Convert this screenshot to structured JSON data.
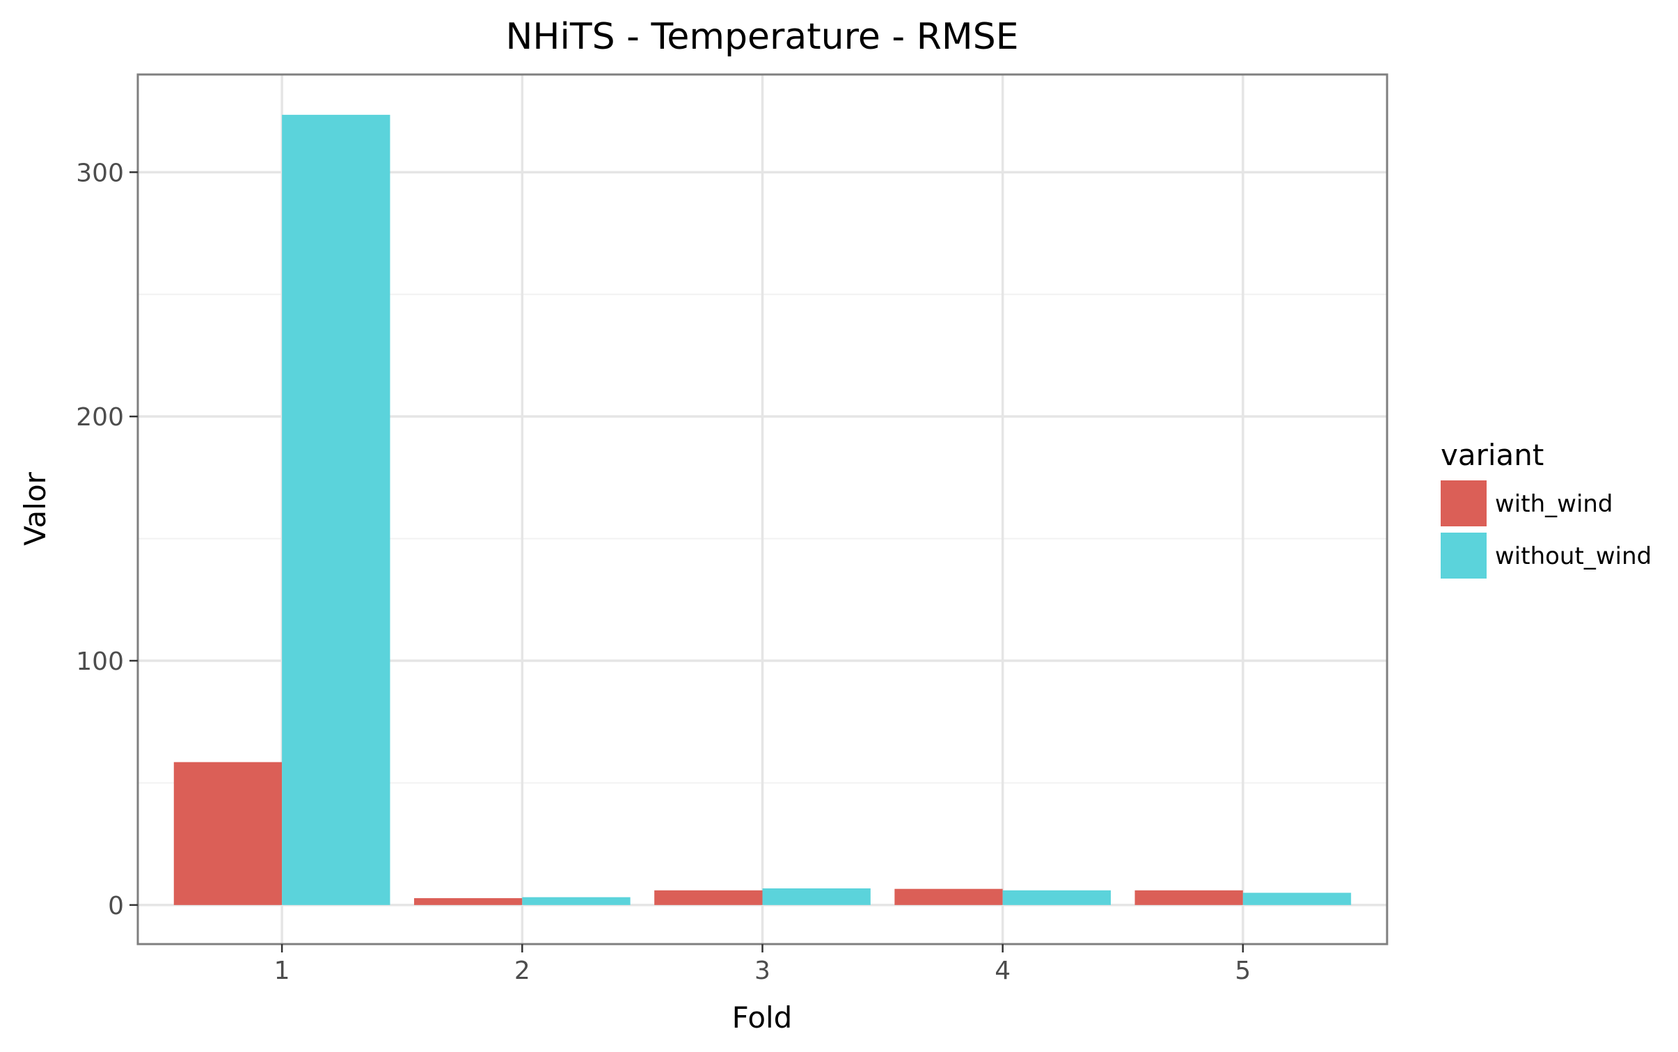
{
  "chart_data": {
    "type": "bar",
    "title": "NHiTS - Temperature - RMSE",
    "xlabel": "Fold",
    "ylabel": "Valor",
    "categories": [
      "1",
      "2",
      "3",
      "4",
      "5"
    ],
    "series": [
      {
        "name": "with_wind",
        "color": "#db5f57",
        "values": [
          58.5,
          2.8,
          6.0,
          6.6,
          6.0
        ]
      },
      {
        "name": "without_wind",
        "color": "#5bd3db",
        "values": [
          323.5,
          3.2,
          6.8,
          6.0,
          5.0
        ]
      }
    ],
    "ylim": [
      -16,
      340
    ],
    "yticks": [
      0,
      100,
      200,
      300
    ],
    "ytick_labels": [
      "0",
      "100",
      "200",
      "300"
    ],
    "legend": {
      "title": "variant",
      "position": "right"
    },
    "grid": true
  }
}
